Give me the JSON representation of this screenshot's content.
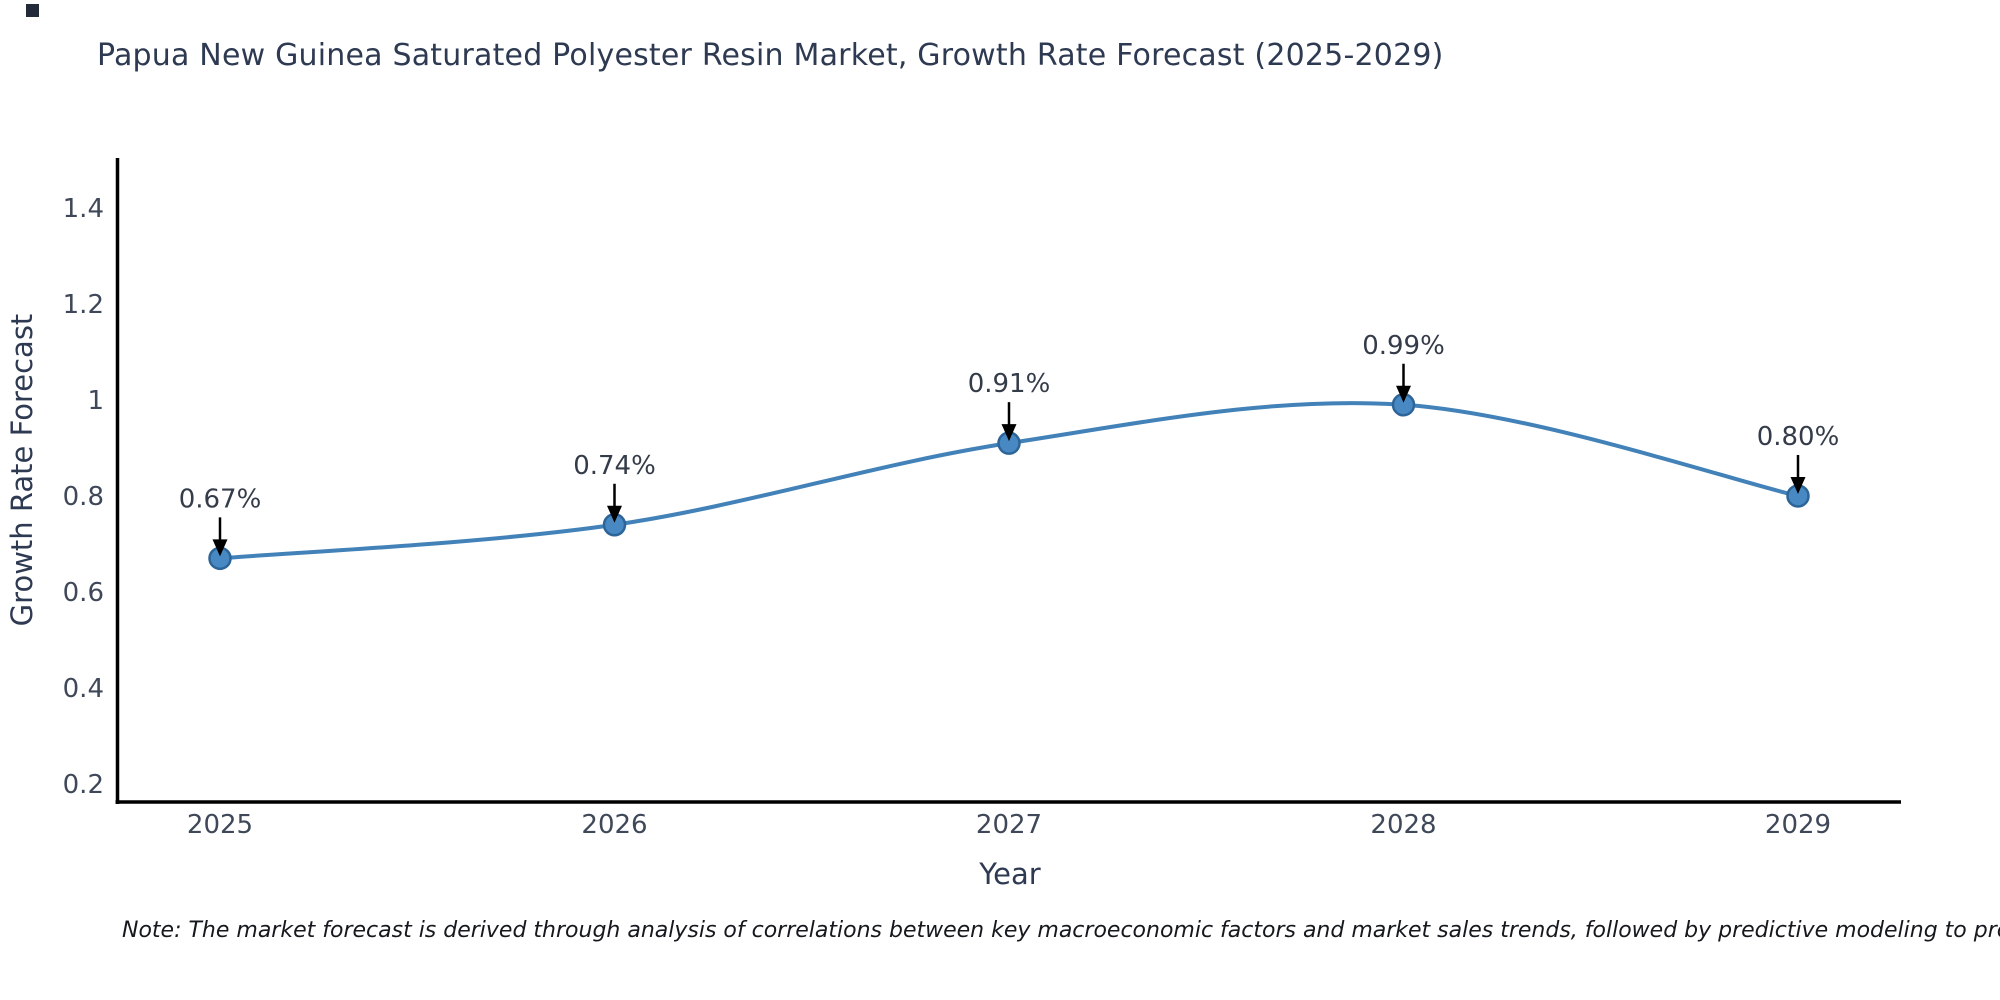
{
  "title": "Papua New Guinea Saturated Polyester Resin Market, Growth Rate Forecast (2025-2029)",
  "note": "Note: The market forecast is derived through analysis of correlations between key macroeconomic factors and market sales trends, followed by predictive modeling to project future sales",
  "chart_data": {
    "type": "line",
    "title": "Papua New Guinea Saturated Polyester Resin Market, Growth Rate Forecast (2025-2029)",
    "xlabel": "Year",
    "ylabel": "Growth Rate Forecast",
    "categories": [
      "2025",
      "2026",
      "2027",
      "2028",
      "2029"
    ],
    "values": [
      0.67,
      0.74,
      0.91,
      0.99,
      0.8
    ],
    "point_labels": [
      "0.67%",
      "0.74%",
      "0.91%",
      "0.99%",
      "0.80%"
    ],
    "yticks": [
      0.2,
      0.4,
      0.6,
      0.8,
      1,
      1.2,
      1.4
    ],
    "ylim": [
      0.1625,
      1.504
    ],
    "grid": false,
    "legend": "none",
    "smooth": true,
    "colors": {
      "line": "#4282b8",
      "marker_fill": "#4889c4",
      "marker_edge": "#2d6599",
      "axis": "#000000",
      "annotation_text": "#353c49",
      "annotation_arrow": "#000000",
      "axis_title_text": "#2e3a52",
      "tick_text": "#3f4858"
    }
  }
}
